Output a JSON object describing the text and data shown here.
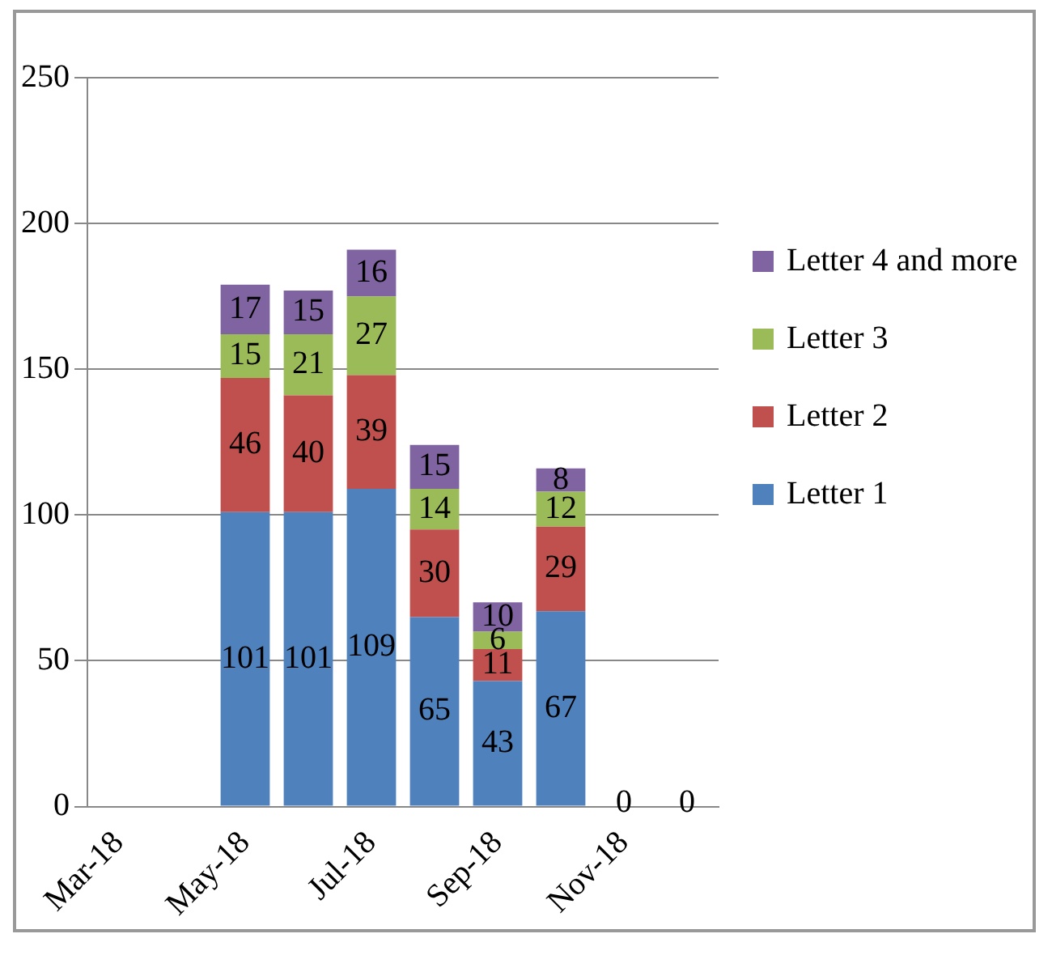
{
  "chart_data": {
    "type": "bar",
    "stacked": true,
    "categories": [
      "Mar-18",
      null,
      "May-18",
      null,
      "Jul-18",
      null,
      "Sep-18",
      null,
      "Nov-18",
      null
    ],
    "series": [
      {
        "name": "Letter 1",
        "color": "#4f81bd",
        "values": [
          null,
          null,
          101,
          101,
          109,
          65,
          43,
          67,
          0,
          0
        ],
        "value_labels": [
          null,
          null,
          "101",
          "101",
          "109",
          "65",
          "43",
          "67",
          "0",
          "0"
        ]
      },
      {
        "name": "Letter 2",
        "color": "#c0504d",
        "values": [
          null,
          null,
          46,
          40,
          39,
          30,
          11,
          29,
          0,
          0
        ],
        "value_labels": [
          null,
          null,
          "46",
          "40",
          "39",
          "30",
          "11",
          "29",
          null,
          null
        ]
      },
      {
        "name": "Letter 3",
        "color": "#9bbb59",
        "values": [
          null,
          null,
          15,
          21,
          27,
          14,
          6,
          12,
          0,
          0
        ],
        "value_labels": [
          null,
          null,
          "15",
          "21",
          "27",
          "14",
          "6",
          "12",
          null,
          null
        ]
      },
      {
        "name": "Letter 4 and more",
        "color": "#8064a2",
        "values": [
          null,
          null,
          17,
          15,
          16,
          15,
          10,
          8,
          0,
          0
        ],
        "value_labels": [
          null,
          null,
          "17",
          "15",
          "16",
          "15",
          "10",
          "8",
          null,
          null
        ]
      }
    ],
    "ylim": [
      0,
      250
    ],
    "yticks": [
      0,
      50,
      100,
      150,
      200,
      250
    ],
    "grid": "y",
    "legend": "right"
  }
}
